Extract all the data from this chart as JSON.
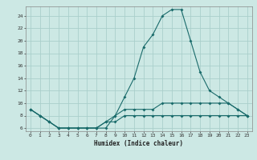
{
  "xlabel": "Humidex (Indice chaleur)",
  "ylabel": "",
  "background_color": "#cce8e4",
  "grid_color": "#aacfcb",
  "line_color": "#1a6b6b",
  "xlim": [
    -0.5,
    23.5
  ],
  "ylim": [
    5.5,
    25.5
  ],
  "xticks": [
    0,
    1,
    2,
    3,
    4,
    5,
    6,
    7,
    8,
    9,
    10,
    11,
    12,
    13,
    14,
    15,
    16,
    17,
    18,
    19,
    20,
    21,
    22,
    23
  ],
  "yticks": [
    6,
    8,
    10,
    12,
    14,
    16,
    18,
    20,
    22,
    24
  ],
  "x": [
    0,
    1,
    2,
    3,
    4,
    5,
    6,
    7,
    8,
    9,
    10,
    11,
    12,
    13,
    14,
    15,
    16,
    17,
    18,
    19,
    20,
    21,
    22,
    23
  ],
  "y_max": [
    9,
    8,
    7,
    6,
    6,
    6,
    6,
    6,
    6,
    8,
    11,
    14,
    19,
    21,
    24,
    25,
    25,
    20,
    15,
    12,
    11,
    10,
    9,
    8
  ],
  "y_mean": [
    9,
    8,
    7,
    6,
    6,
    6,
    6,
    6,
    7,
    8,
    9,
    9,
    9,
    9,
    10,
    10,
    10,
    10,
    10,
    10,
    10,
    10,
    9,
    8
  ],
  "y_min": [
    9,
    8,
    7,
    6,
    6,
    6,
    6,
    6,
    7,
    7,
    8,
    8,
    8,
    8,
    8,
    8,
    8,
    8,
    8,
    8,
    8,
    8,
    8,
    8
  ]
}
